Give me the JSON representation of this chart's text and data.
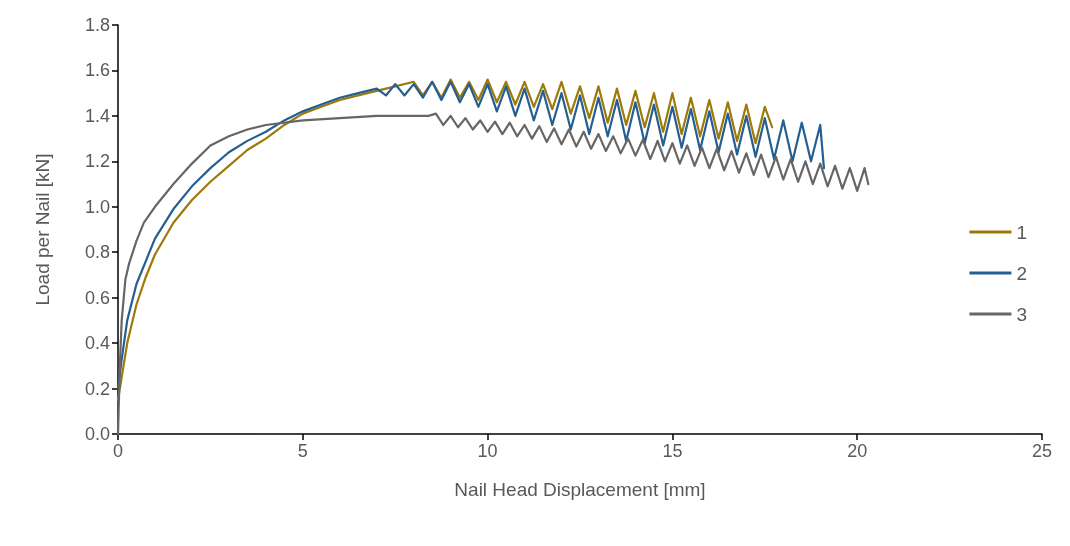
{
  "chart_data": {
    "type": "line",
    "xlabel": "Nail Head Displacement [mm]",
    "ylabel": "Load per Nail [kN]",
    "xlim": [
      0,
      25
    ],
    "xticks": [
      0,
      5,
      10,
      15,
      20,
      25
    ],
    "ylim": [
      0,
      1.8
    ],
    "yticks": [
      {
        "value": 0,
        "label": "0.0"
      },
      0.2,
      0.4,
      0.6,
      0.8,
      {
        "value": 1,
        "label": "1.0"
      },
      1.2,
      1.4,
      1.6,
      1.8
    ],
    "grid": false,
    "legend": "right",
    "marker": "none",
    "line_style": "solid",
    "series": [
      {
        "name": "1",
        "color": "#9c7a0a",
        "x": [
          0,
          0.1,
          0.25,
          0.5,
          0.75,
          1,
          1.5,
          2,
          2.5,
          3,
          3.5,
          4,
          4.5,
          5,
          5.5,
          6,
          6.5,
          7,
          7.5,
          8.0,
          8.25,
          8.5,
          8.75,
          9.0,
          9.25,
          9.5,
          9.75,
          10.0,
          10.25,
          10.5,
          10.75,
          11.0,
          11.25,
          11.5,
          11.75,
          12.0,
          12.25,
          12.5,
          12.75,
          13.0,
          13.25,
          13.5,
          13.75,
          14.0,
          14.25,
          14.5,
          14.75,
          15.0,
          15.25,
          15.5,
          15.75,
          16.0,
          16.25,
          16.5,
          16.75,
          17.0,
          17.25,
          17.5,
          17.7
        ],
        "values": [
          0.15,
          0.25,
          0.4,
          0.57,
          0.69,
          0.79,
          0.93,
          1.03,
          1.11,
          1.18,
          1.25,
          1.3,
          1.36,
          1.41,
          1.44,
          1.47,
          1.49,
          1.51,
          1.53,
          1.55,
          1.49,
          1.55,
          1.48,
          1.56,
          1.48,
          1.55,
          1.47,
          1.56,
          1.46,
          1.55,
          1.45,
          1.55,
          1.44,
          1.54,
          1.43,
          1.55,
          1.41,
          1.53,
          1.39,
          1.53,
          1.37,
          1.52,
          1.36,
          1.51,
          1.35,
          1.5,
          1.33,
          1.5,
          1.32,
          1.48,
          1.31,
          1.47,
          1.3,
          1.46,
          1.29,
          1.45,
          1.28,
          1.44,
          1.35
        ]
      },
      {
        "name": "2",
        "color": "#255e91",
        "x": [
          0,
          0.1,
          0.25,
          0.5,
          0.75,
          1,
          1.5,
          2,
          2.5,
          3,
          3.5,
          4,
          4.5,
          5,
          5.5,
          6,
          6.5,
          7.0,
          7.25,
          7.5,
          7.75,
          8.0,
          8.25,
          8.5,
          8.75,
          9.0,
          9.25,
          9.5,
          9.75,
          10.0,
          10.25,
          10.5,
          10.75,
          11.0,
          11.25,
          11.5,
          11.75,
          12.0,
          12.25,
          12.5,
          12.75,
          13.0,
          13.25,
          13.5,
          13.75,
          14.0,
          14.25,
          14.5,
          14.75,
          15.0,
          15.25,
          15.5,
          15.75,
          16.0,
          16.25,
          16.5,
          16.75,
          17.0,
          17.25,
          17.5,
          17.75,
          18.0,
          18.25,
          18.5,
          18.75,
          19.0,
          19.1
        ],
        "values": [
          0.2,
          0.33,
          0.5,
          0.66,
          0.76,
          0.86,
          0.99,
          1.09,
          1.17,
          1.24,
          1.29,
          1.33,
          1.38,
          1.42,
          1.45,
          1.48,
          1.5,
          1.52,
          1.49,
          1.54,
          1.49,
          1.54,
          1.48,
          1.55,
          1.47,
          1.55,
          1.46,
          1.54,
          1.44,
          1.54,
          1.42,
          1.53,
          1.4,
          1.52,
          1.38,
          1.51,
          1.36,
          1.5,
          1.34,
          1.49,
          1.32,
          1.48,
          1.31,
          1.47,
          1.29,
          1.46,
          1.28,
          1.45,
          1.27,
          1.44,
          1.26,
          1.43,
          1.25,
          1.42,
          1.24,
          1.41,
          1.23,
          1.4,
          1.22,
          1.39,
          1.21,
          1.38,
          1.2,
          1.37,
          1.2,
          1.36,
          1.17
        ]
      },
      {
        "name": "3",
        "color": "#666666",
        "x": [
          0,
          0.05,
          0.1,
          0.2,
          0.3,
          0.5,
          0.7,
          1,
          1.5,
          2,
          2.5,
          3,
          3.5,
          4,
          5,
          6,
          7,
          8,
          8.4,
          8.6,
          8.8,
          9.0,
          9.2,
          9.4,
          9.6,
          9.8,
          10.0,
          10.2,
          10.4,
          10.6,
          10.8,
          11.0,
          11.2,
          11.4,
          11.6,
          11.8,
          12.0,
          12.2,
          12.4,
          12.6,
          12.8,
          13.0,
          13.2,
          13.4,
          13.6,
          13.8,
          14.0,
          14.2,
          14.4,
          14.6,
          14.8,
          15.0,
          15.2,
          15.4,
          15.6,
          15.8,
          16.0,
          16.2,
          16.4,
          16.6,
          16.8,
          17.0,
          17.2,
          17.4,
          17.6,
          17.8,
          18.0,
          18.2,
          18.4,
          18.6,
          18.8,
          19.0,
          19.2,
          19.4,
          19.6,
          19.8,
          20.0,
          20.2,
          20.3
        ],
        "values": [
          0,
          0.3,
          0.5,
          0.68,
          0.75,
          0.85,
          0.93,
          1.0,
          1.1,
          1.19,
          1.27,
          1.31,
          1.34,
          1.36,
          1.38,
          1.39,
          1.4,
          1.4,
          1.4,
          1.41,
          1.36,
          1.4,
          1.35,
          1.39,
          1.34,
          1.38,
          1.33,
          1.375,
          1.32,
          1.37,
          1.31,
          1.36,
          1.3,
          1.355,
          1.285,
          1.345,
          1.275,
          1.34,
          1.265,
          1.33,
          1.255,
          1.32,
          1.245,
          1.31,
          1.235,
          1.3,
          1.225,
          1.295,
          1.21,
          1.29,
          1.2,
          1.28,
          1.19,
          1.27,
          1.18,
          1.26,
          1.17,
          1.255,
          1.16,
          1.245,
          1.15,
          1.235,
          1.14,
          1.23,
          1.13,
          1.22,
          1.12,
          1.21,
          1.11,
          1.2,
          1.1,
          1.19,
          1.09,
          1.18,
          1.08,
          1.17,
          1.07,
          1.17,
          1.1
        ]
      }
    ]
  }
}
